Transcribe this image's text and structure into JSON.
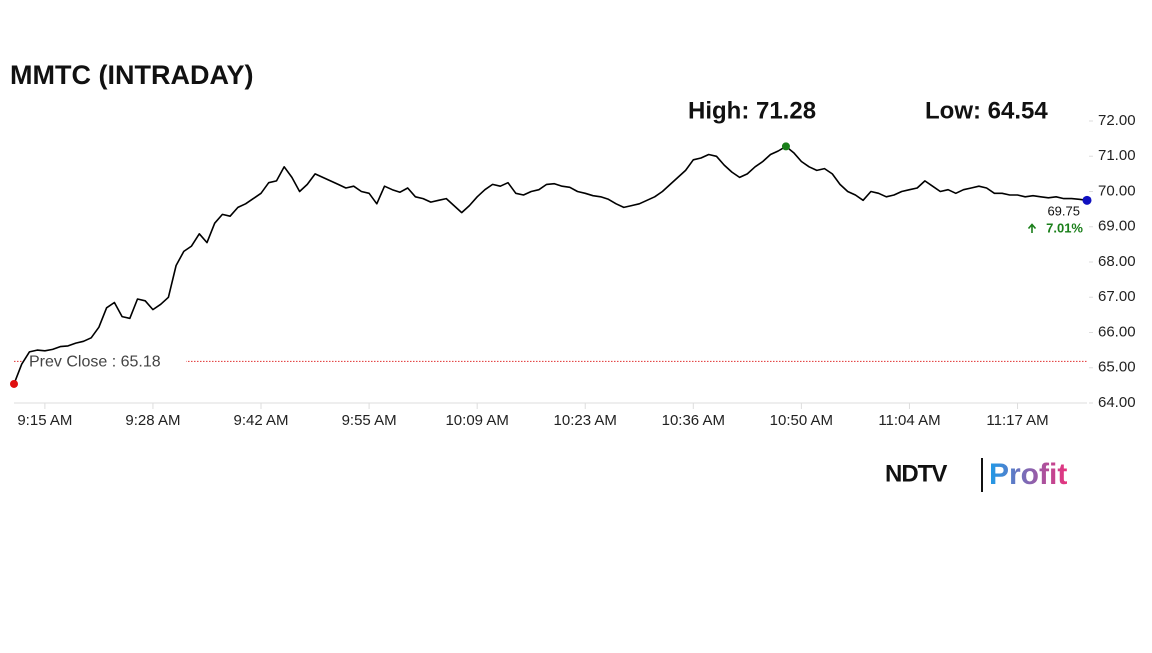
{
  "chart_data": {
    "type": "line",
    "title": "MMTC (INTRADAY)",
    "high": {
      "value": 71.28,
      "label": "High: 71.28"
    },
    "low": {
      "value": 64.54,
      "label": "Low: 64.54"
    },
    "prev_close": {
      "value": 65.18,
      "label": "Prev Close : 65.18"
    },
    "last": 69.75,
    "change": "7.01%",
    "categories": [
      null,
      null,
      null,
      null,
      "9:15 AM",
      null,
      null,
      null,
      null,
      null,
      null,
      null,
      null,
      null,
      null,
      null,
      null,
      null,
      "9:28 AM",
      null,
      null,
      null,
      null,
      null,
      null,
      null,
      null,
      null,
      null,
      null,
      null,
      null,
      "9:42 AM",
      null,
      null,
      null,
      null,
      null,
      null,
      null,
      null,
      null,
      null,
      null,
      null,
      null,
      "9:55 AM",
      null,
      null,
      null,
      null,
      null,
      null,
      null,
      null,
      null,
      null,
      null,
      null,
      null,
      "10:09 AM",
      null,
      null,
      null,
      null,
      null,
      null,
      null,
      null,
      null,
      null,
      null,
      null,
      null,
      "10:23 AM",
      null,
      null,
      null,
      null,
      null,
      null,
      null,
      null,
      null,
      null,
      null,
      null,
      null,
      "10:36 AM",
      null,
      null,
      null,
      null,
      null,
      null,
      null,
      null,
      null,
      null,
      null,
      null,
      null,
      "10:50 AM",
      null,
      null,
      null,
      null,
      null,
      null,
      null,
      null,
      null,
      null,
      null,
      null,
      null,
      "11:04 AM",
      null,
      null,
      null,
      null,
      null,
      null,
      null,
      null,
      null,
      null,
      null,
      null,
      null,
      "11:17 AM",
      null,
      null,
      null,
      null,
      null,
      null,
      null,
      null,
      null
    ],
    "series": [
      {
        "color": "#000000",
        "values": [
          64.54,
          65.1,
          65.45,
          65.5,
          65.48,
          65.52,
          65.6,
          65.62,
          65.7,
          65.75,
          65.85,
          66.15,
          66.7,
          66.85,
          66.45,
          66.4,
          66.95,
          66.9,
          66.65,
          66.8,
          67.0,
          67.9,
          68.3,
          68.45,
          68.8,
          68.55,
          69.1,
          69.35,
          69.3,
          69.55,
          69.65,
          69.8,
          69.95,
          70.25,
          70.3,
          70.7,
          70.4,
          70.0,
          70.2,
          70.5,
          70.4,
          70.3,
          70.2,
          70.1,
          70.15,
          70.0,
          69.95,
          69.65,
          70.15,
          70.05,
          69.98,
          70.1,
          69.85,
          69.8,
          69.7,
          69.75,
          69.8,
          69.6,
          69.4,
          69.6,
          69.85,
          70.05,
          70.2,
          70.15,
          70.25,
          69.95,
          69.9,
          70.0,
          70.05,
          70.2,
          70.22,
          70.15,
          70.12,
          70.0,
          69.95,
          69.88,
          69.85,
          69.78,
          69.65,
          69.55,
          69.6,
          69.65,
          69.75,
          69.85,
          70.0,
          70.2,
          70.4,
          70.6,
          70.9,
          70.95,
          71.05,
          71.0,
          70.75,
          70.55,
          70.4,
          70.5,
          70.7,
          70.85,
          71.05,
          71.15,
          71.28,
          71.1,
          70.85,
          70.7,
          70.6,
          70.65,
          70.5,
          70.2,
          70.0,
          69.9,
          69.75,
          70.0,
          69.95,
          69.85,
          69.9,
          70.0,
          70.05,
          70.1,
          70.3,
          70.15,
          70.0,
          70.05,
          69.95,
          70.05,
          70.1,
          70.15,
          70.1,
          69.95,
          69.95,
          69.9,
          69.9,
          69.85,
          69.88,
          69.85,
          69.82,
          69.85,
          69.8,
          69.8,
          69.78,
          69.75
        ]
      }
    ],
    "ylim": [
      64,
      72
    ],
    "yticks": [
      {
        "value": 64,
        "label": "64.00"
      },
      {
        "value": 65,
        "label": "65.00"
      },
      {
        "value": 66,
        "label": "66.00"
      },
      {
        "value": 67,
        "label": "67.00"
      },
      {
        "value": 68,
        "label": "68.00"
      },
      {
        "value": 69,
        "label": "69.00"
      },
      {
        "value": 70,
        "label": "70.00"
      },
      {
        "value": 71,
        "label": "71.00"
      },
      {
        "value": 72,
        "label": "72.00"
      }
    ],
    "high_color": "#1a7f1a",
    "low_color": "#e01010",
    "last_color": "#1010c0",
    "prev_close_color": "#e03030"
  },
  "logo": {
    "brand": "NDTV",
    "product": "Profit"
  }
}
